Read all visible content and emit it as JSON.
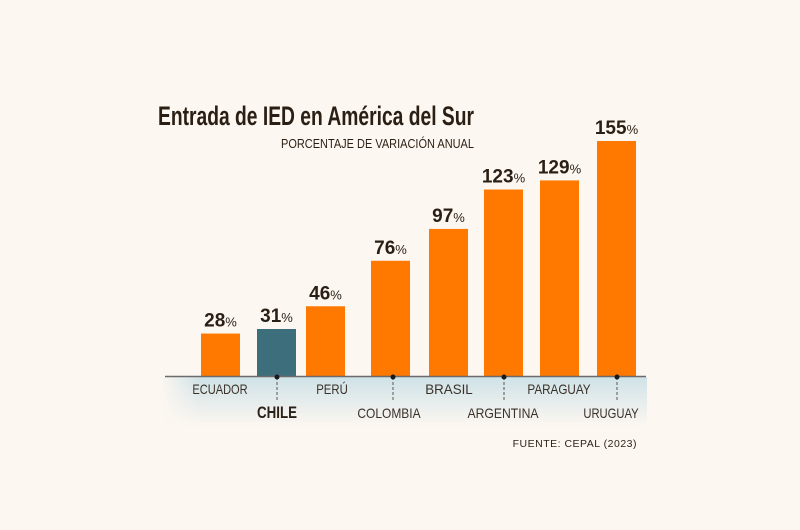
{
  "chart_data": {
    "type": "bar",
    "title": "Entrada de IED en América del Sur",
    "subtitle": "PORCENTAJE DE VARIACIÓN ANUAL",
    "source": "FUENTE: CEPAL (2023)",
    "categories": [
      "ECUADOR",
      "CHILE",
      "PERÚ",
      "COLOMBIA",
      "BRASIL",
      "ARGENTINA",
      "PARAGUAY",
      "URUGUAY"
    ],
    "values": [
      28,
      31,
      46,
      76,
      97,
      123,
      129,
      155
    ],
    "value_labels": [
      "28",
      "31",
      "46",
      "76",
      "97",
      "123",
      "129",
      "155"
    ],
    "unit_suffix": "%",
    "highlight": "CHILE",
    "colors": {
      "bar": "#ff7800",
      "highlight": "#3d6e7c",
      "text": "#2a1f14",
      "band": "#d6e6ea"
    },
    "xlabel": "",
    "ylabel": "",
    "ylim": [
      0,
      155
    ]
  }
}
